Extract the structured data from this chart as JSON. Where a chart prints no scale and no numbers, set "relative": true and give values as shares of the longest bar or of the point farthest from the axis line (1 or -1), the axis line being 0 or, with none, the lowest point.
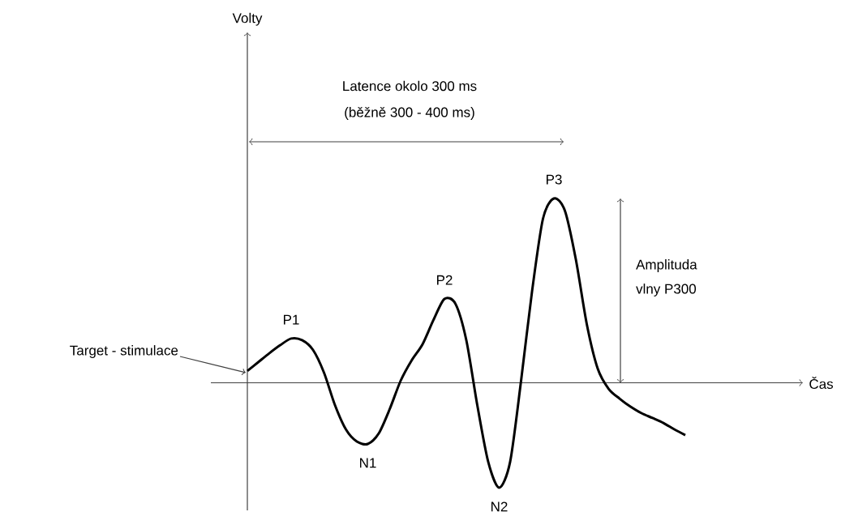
{
  "chart_data": {
    "type": "line",
    "relative": true,
    "color": "#000000",
    "categories": [
      null,
      null,
      null,
      null,
      null,
      null,
      null,
      null,
      null,
      null,
      null,
      null,
      null,
      null,
      null,
      null,
      null,
      null,
      null,
      null,
      null,
      null,
      null,
      null,
      null,
      null,
      null,
      null,
      null,
      null,
      null,
      null,
      null,
      null,
      null,
      null,
      null,
      null,
      null,
      null,
      null
    ],
    "values": [
      0.064,
      0.112,
      0.16,
      0.204,
      0.24,
      0.231,
      0.178,
      0.055,
      -0.121,
      -0.253,
      -0.319,
      -0.332,
      -0.275,
      -0.143,
      0.011,
      0.121,
      0.209,
      0.341,
      0.455,
      0.429,
      0.231,
      -0.121,
      -0.429,
      -0.569,
      -0.429,
      0.011,
      0.495,
      0.89,
      1,
      0.934,
      0.67,
      0.319,
      0.077,
      -0.033,
      -0.086,
      -0.13,
      -0.165,
      -0.191,
      -0.218,
      -0.253,
      -0.284
    ],
    "annotations": [
      "P1",
      "N1",
      "P2",
      "N2",
      "P3",
      "Target - stimulace",
      "Latence okolo 300 ms",
      "(běžně 300 - 400 ms)",
      "Amplituda",
      "vlny P300",
      "Volty",
      "Čas"
    ]
  }
}
